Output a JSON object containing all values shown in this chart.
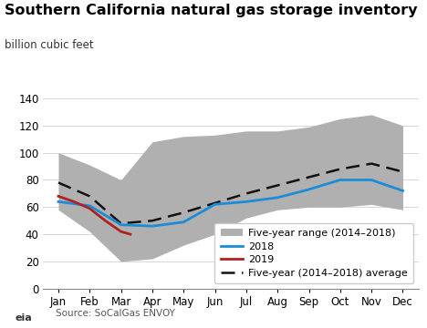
{
  "title": "Southern California natural gas storage inventory",
  "subtitle": "billion cubic feet",
  "source": "Source: SoCalGas ENVOY",
  "ylim": [
    0,
    140
  ],
  "yticks": [
    0,
    20,
    40,
    60,
    80,
    100,
    120,
    140
  ],
  "months": [
    "Jan",
    "Feb",
    "Mar",
    "Apr",
    "May",
    "Jun",
    "Jul",
    "Aug",
    "Sep",
    "Oct",
    "Nov",
    "Dec"
  ],
  "x_vals": [
    0,
    1,
    2,
    3,
    4,
    5,
    6,
    7,
    8,
    9,
    10,
    11
  ],
  "five_year_max": [
    100,
    91,
    80,
    108,
    112,
    113,
    116,
    116,
    119,
    125,
    128,
    120
  ],
  "five_year_min": [
    58,
    42,
    20,
    22,
    32,
    40,
    52,
    58,
    60,
    60,
    62,
    58
  ],
  "five_year_avg": [
    78,
    68,
    48,
    50,
    56,
    63,
    70,
    76,
    82,
    88,
    92,
    86
  ],
  "line_2018": [
    64,
    61,
    47,
    46,
    49,
    62,
    64,
    67,
    73,
    80,
    80,
    72
  ],
  "line_2019_x": [
    0,
    0.5,
    1,
    1.5,
    2,
    2.3
  ],
  "line_2019_y": [
    68,
    64,
    59,
    50,
    42,
    40
  ],
  "range_color": "#b0b0b0",
  "avg_color": "#111111",
  "line_2018_color": "#1a8cd8",
  "line_2019_color": "#b02020",
  "background_color": "#ffffff",
  "title_fontsize": 11.5,
  "subtitle_fontsize": 8.5,
  "tick_fontsize": 8.5,
  "legend_fontsize": 8,
  "source_fontsize": 7.5
}
